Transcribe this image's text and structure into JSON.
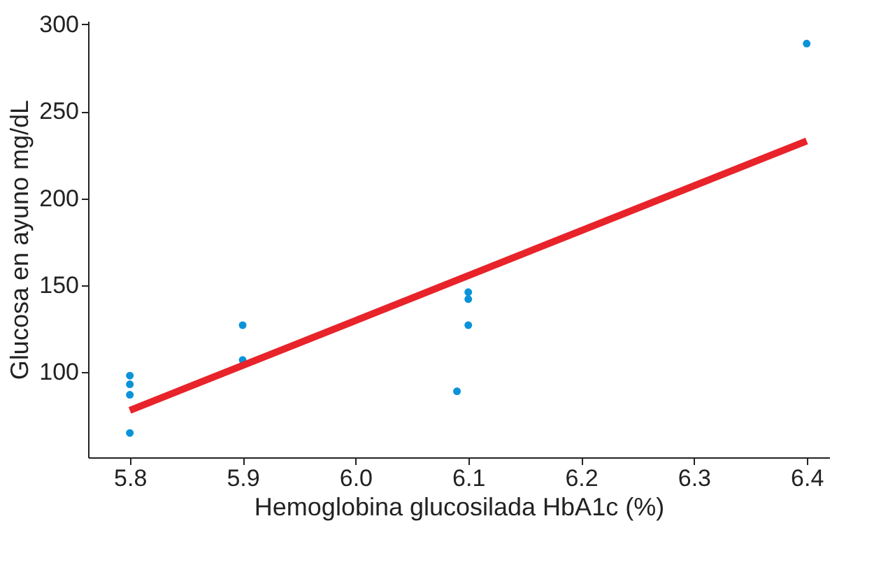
{
  "chart_data": {
    "type": "scatter",
    "xlabel": "Hemoglobina glucosilada HbA1c (%)",
    "ylabel": "Glucosa en ayuno mg/dL",
    "xlim": [
      5.763,
      6.42
    ],
    "ylim": [
      51,
      302
    ],
    "xticks": [
      5.8,
      5.9,
      {
        "value": 6.0,
        "label": "6.0"
      },
      6.1,
      6.2,
      6.3,
      6.4
    ],
    "yticks": [
      100,
      150,
      200,
      250,
      300
    ],
    "grid": false,
    "series": [
      {
        "marker": "circle",
        "color": "#0a93d8",
        "x": [
          5.8,
          5.8,
          5.8,
          5.8,
          5.9,
          5.9,
          6.09,
          6.1,
          6.1,
          6.1,
          6.4
        ],
        "values": [
          98,
          93,
          87,
          65,
          127,
          107,
          89,
          146,
          142,
          127,
          289
        ]
      },
      {
        "type": "line",
        "line_style": "solid",
        "color": "#e8232a",
        "x": [
          5.8,
          6.4
        ],
        "values": [
          78,
          233
        ]
      }
    ]
  }
}
